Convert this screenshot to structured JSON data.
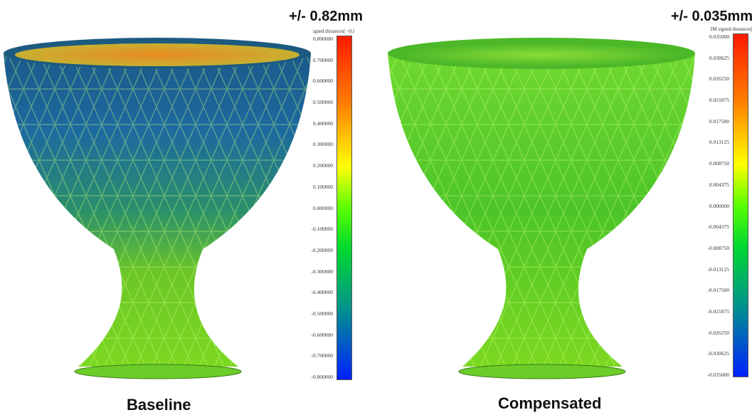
{
  "panels": [
    {
      "caption": "Baseline",
      "range_label": "+/- 0.82mm",
      "colorbar_title": "igned distances[ <0.82]",
      "ticks": [
        "0.800000",
        "0.700000",
        "0.600000",
        "0.500000",
        "0.400000",
        "0.300000",
        "0.200000",
        "0.100000",
        "0.000000",
        "-0.100000",
        "-0.200000",
        "-0.300000",
        "-0.400000",
        "-0.500000",
        "-0.600000",
        "-0.700000",
        "-0.800000"
      ]
    },
    {
      "caption": "Compensated",
      "range_label": "+/- 0.035mm",
      "colorbar_title": "2M signed distances[ <",
      "ticks": [
        "0.035000",
        "0.030625",
        "0.026250",
        "0.021875",
        "0.017500",
        "0.013125",
        "0.008750",
        "0.004375",
        "0.000000",
        "-0.004375",
        "-0.008750",
        "-0.013125",
        "-0.017500",
        "-0.021875",
        "-0.026250",
        "-0.030625",
        "-0.035000"
      ]
    }
  ],
  "colors": {
    "high": "#ff1a00",
    "zero": "#5aff00",
    "low": "#0020ff"
  }
}
